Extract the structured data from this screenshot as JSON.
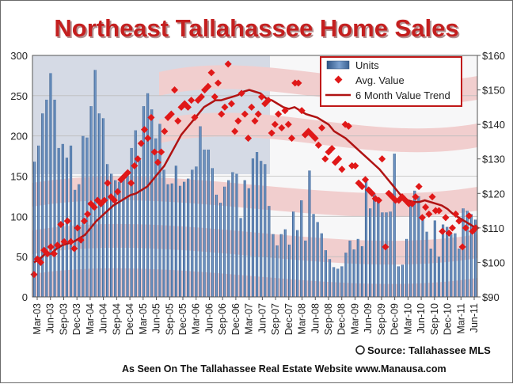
{
  "chart_data": {
    "type": "bar",
    "title": "Northeast Tallahassee Home Sales",
    "x_tick_labels": [
      "Mar-03",
      "Jun-03",
      "Sep-03",
      "Dec-03",
      "Mar-04",
      "Jun-04",
      "Sep-04",
      "Dec-04",
      "Mar-05",
      "Jun-05",
      "Sep-05",
      "Dec-05",
      "Mar-06",
      "Jun-06",
      "Sep-06",
      "Dec-06",
      "Mar-07",
      "Jun-07",
      "Sep-07",
      "Dec-07",
      "Mar-08",
      "Jun-08",
      "Sep-08",
      "Dec-08",
      "Mar-09",
      "Jun-09",
      "Sep-09",
      "Dec-09",
      "Mar-10",
      "Jun-10",
      "Sep-10",
      "Dec-10",
      "Mar-11",
      "Jun-11"
    ],
    "y_left": {
      "min": 0,
      "max": 300,
      "ticks": [
        "0",
        "50",
        "100",
        "150",
        "200",
        "250",
        "300"
      ]
    },
    "y_right": {
      "min": 90,
      "max": 160,
      "ticks": [
        "$90",
        "$100",
        "$110",
        "$120",
        "$130",
        "$140",
        "$150",
        "$160"
      ]
    },
    "grid": true,
    "legend_position": "top-right",
    "series": [
      {
        "name": "Units",
        "type": "bar",
        "axis": "left",
        "color": "#4f77a8",
        "values": [
          168,
          188,
          228,
          245,
          278,
          245,
          185,
          190,
          173,
          188,
          133,
          140,
          200,
          198,
          237,
          282,
          228,
          222,
          165,
          153,
          145,
          143,
          148,
          155,
          185,
          207,
          170,
          237,
          253,
          233,
          197,
          215,
          158,
          140,
          141,
          163,
          138,
          143,
          147,
          158,
          162,
          212,
          183,
          183,
          160,
          127,
          117,
          137,
          145,
          155,
          153,
          98,
          145,
          135,
          172,
          180,
          169,
          165,
          113,
          78,
          64,
          78,
          84,
          65,
          106,
          83,
          120,
          70,
          157,
          103,
          93,
          79,
          58,
          47,
          37,
          35,
          38,
          55,
          70,
          59,
          72,
          63,
          145,
          110,
          128,
          122,
          105,
          105,
          106,
          178,
          38,
          40,
          72,
          115,
          132,
          125,
          96,
          81,
          60,
          95,
          50,
          90,
          87,
          78,
          79,
          60,
          110,
          107,
          103,
          96
        ]
      },
      {
        "name": "Avg. Value",
        "type": "scatter",
        "axis": "right",
        "color": "#e01818",
        "values": [
          96.5,
          101,
          100,
          103.5,
          102.5,
          104.5,
          102.5,
          105,
          111,
          106,
          112,
          106,
          104,
          110,
          106.5,
          112,
          114,
          117,
          116,
          118,
          117,
          118,
          123,
          119,
          118,
          120.5,
          124,
          125,
          126,
          123,
          128,
          130,
          134.5,
          138.5,
          136,
          142,
          132,
          129,
          132,
          138,
          142,
          143,
          150,
          141,
          145,
          146,
          145,
          147,
          142,
          147,
          148,
          150,
          151,
          155,
          148,
          152,
          143,
          145,
          157.5,
          146,
          138,
          141,
          149,
          143,
          136,
          145,
          141,
          143,
          148,
          146,
          147,
          137.5,
          140,
          143,
          139,
          144,
          140,
          136,
          152,
          152,
          144,
          137,
          138,
          137,
          136,
          134,
          139,
          130,
          132,
          133,
          129,
          130,
          127,
          140,
          139.5,
          128,
          128,
          123,
          122,
          124,
          121,
          120,
          118.5,
          118,
          130,
          104.5,
          120,
          119,
          118,
          118,
          119,
          118,
          117,
          117,
          119,
          122,
          113,
          116,
          114,
          119,
          115,
          115,
          109,
          113,
          108.5,
          110,
          114,
          112,
          104.5,
          110,
          113.5,
          109,
          110
        ]
      },
      {
        "name": "6 Month Value Trend",
        "type": "line",
        "axis": "right",
        "color": "#b01313",
        "values": [
          100,
          101,
          102.5,
          102.5,
          104,
          105,
          105.5,
          106,
          107,
          108,
          110,
          112,
          113.5,
          115,
          116.5,
          117.5,
          118.5,
          119.5,
          120,
          121,
          122,
          124,
          126,
          128,
          131,
          134,
          137,
          139,
          141,
          143,
          145,
          146,
          147,
          147,
          147.5,
          148,
          148.5,
          149.5,
          150,
          149.5,
          149,
          147.5,
          147,
          146,
          145,
          144.5,
          145,
          144,
          143,
          142.5,
          142,
          141,
          140,
          138,
          137,
          136,
          134.5,
          133,
          131.5,
          130,
          128.5,
          127,
          125,
          123,
          121,
          119,
          118,
          117.5,
          117.5,
          118,
          117.5,
          117,
          116.5,
          115.5,
          114,
          113,
          112,
          111,
          110
        ]
      }
    ],
    "source_line": "Source: Tallahassee MLS",
    "footer_line": "As Seen On The Tallahassee Real Estate Website  www.Manausa.com"
  }
}
